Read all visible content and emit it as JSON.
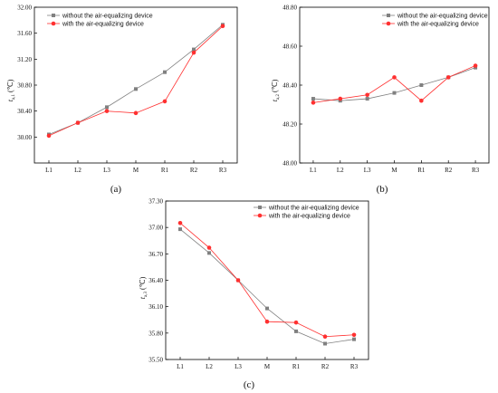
{
  "chart_data": [
    {
      "type": "line",
      "panel_label": "(a)",
      "ylabel": "t",
      "ylabel_sub": "a,1",
      "ylabel_unit": "(℃)",
      "categories": [
        "L1",
        "L2",
        "L3",
        "M",
        "R1",
        "R2",
        "R3"
      ],
      "ylim": [
        29.6,
        32.0
      ],
      "yticks": [
        "30.00",
        "30.40",
        "30.80",
        "31.20",
        "31.60",
        "32.00"
      ],
      "ytick_values": [
        30.0,
        30.4,
        30.8,
        31.2,
        31.6,
        32.0
      ],
      "legend": "top-left",
      "series": [
        {
          "name": "without the air-equalizing device",
          "color": "#808080",
          "marker": "square",
          "values": [
            30.04,
            30.22,
            30.46,
            30.74,
            31.0,
            31.35,
            31.73
          ]
        },
        {
          "name": "with the air-equalizing device",
          "color": "#ff3030",
          "marker": "circle",
          "values": [
            30.02,
            30.22,
            30.4,
            30.37,
            30.55,
            31.3,
            31.71
          ]
        }
      ]
    },
    {
      "type": "line",
      "panel_label": "(b)",
      "ylabel": "t",
      "ylabel_sub": "a,2",
      "ylabel_unit": "(℃)",
      "categories": [
        "L1",
        "L2",
        "L3",
        "M",
        "R1",
        "R2",
        "R3"
      ],
      "ylim": [
        48.0,
        48.8
      ],
      "yticks": [
        "48.00",
        "48.20",
        "48.40",
        "48.60",
        "48.80"
      ],
      "ytick_values": [
        48.0,
        48.2,
        48.4,
        48.6,
        48.8
      ],
      "legend": "top-right",
      "series": [
        {
          "name": "without the air-equalizing device",
          "color": "#808080",
          "marker": "square",
          "values": [
            48.33,
            48.32,
            48.33,
            48.36,
            48.4,
            48.44,
            48.49
          ]
        },
        {
          "name": "with the air-equalizing device",
          "color": "#ff3030",
          "marker": "circle",
          "values": [
            48.31,
            48.33,
            48.35,
            48.44,
            48.32,
            48.44,
            48.5
          ]
        }
      ]
    },
    {
      "type": "line",
      "panel_label": "(c)",
      "ylabel": "t",
      "ylabel_sub": "a,3",
      "ylabel_unit": "(℃)",
      "categories": [
        "L1",
        "L2",
        "L3",
        "M",
        "R1",
        "R2",
        "R3"
      ],
      "ylim": [
        35.5,
        37.3
      ],
      "yticks": [
        "35.50",
        "35.80",
        "36.10",
        "36.40",
        "36.70",
        "37.00",
        "37.30"
      ],
      "ytick_values": [
        35.5,
        35.8,
        36.1,
        36.4,
        36.7,
        37.0,
        37.3
      ],
      "legend": "top-right",
      "series": [
        {
          "name": "without the air-equalizing device",
          "color": "#808080",
          "marker": "square",
          "values": [
            36.98,
            36.71,
            36.4,
            36.08,
            35.82,
            35.68,
            35.73
          ]
        },
        {
          "name": "with the air-equalizing device",
          "color": "#ff3030",
          "marker": "circle",
          "values": [
            37.05,
            36.77,
            36.4,
            35.93,
            35.92,
            35.76,
            35.78
          ]
        }
      ]
    }
  ]
}
